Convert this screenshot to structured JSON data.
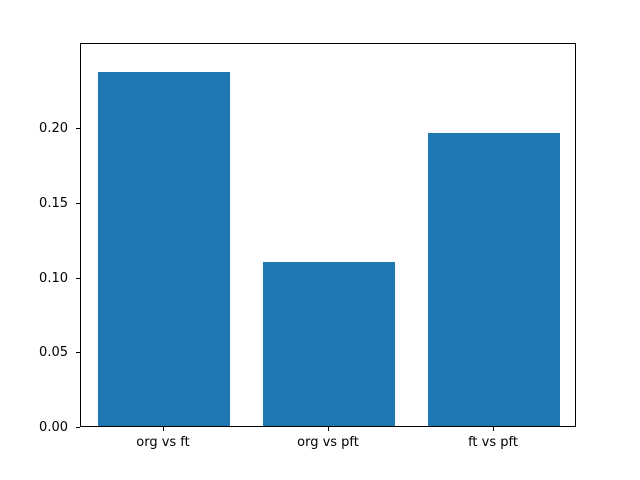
{
  "figure": {
    "background": "#ffffff",
    "title": ""
  },
  "chart_data": {
    "type": "bar",
    "categories": [
      "org vs ft",
      "org vs pft",
      "ft vs pft"
    ],
    "values": [
      0.237,
      0.11,
      0.196
    ],
    "title": "",
    "xlabel": "",
    "ylabel": "",
    "ylim": [
      0,
      0.257
    ],
    "yticks": [
      0.0,
      0.05,
      0.1,
      0.15,
      0.2
    ],
    "ytick_label_format": "2dp",
    "bar_color": "#1f77b4",
    "grid": false,
    "legend": "none"
  }
}
